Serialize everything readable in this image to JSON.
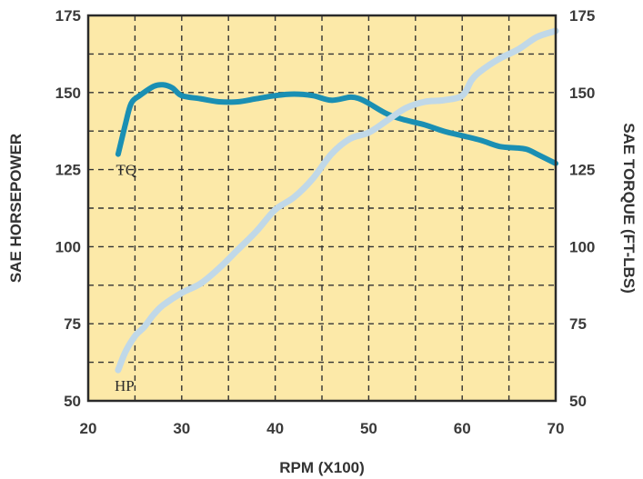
{
  "chart_data": {
    "type": "line",
    "title": "",
    "xlabel": "RPM (X100)",
    "ylabel_left": "SAE HORSEPOWER",
    "ylabel_right": "SAE TORQUE (FT-LBS)",
    "xlim": [
      20,
      70
    ],
    "ylim_left": [
      50,
      175
    ],
    "ylim_right": [
      50,
      175
    ],
    "x_ticks": [
      20,
      30,
      40,
      50,
      60,
      70
    ],
    "y_ticks_left": [
      50,
      75,
      100,
      125,
      150,
      175
    ],
    "y_ticks_right": [
      50,
      75,
      100,
      125,
      150,
      175
    ],
    "grid": true,
    "grid_style": "dashed",
    "legend": "none",
    "series": [
      {
        "name": "TQ",
        "axis": "right",
        "color": "#1a8fb3",
        "points": [
          [
            23.2,
            130
          ],
          [
            24,
            140
          ],
          [
            24.6,
            146.5
          ],
          [
            25.5,
            149
          ],
          [
            27,
            152
          ],
          [
            28,
            152.5
          ],
          [
            29,
            151.5
          ],
          [
            30,
            149
          ],
          [
            32,
            148
          ],
          [
            34,
            147
          ],
          [
            36,
            147
          ],
          [
            38,
            148
          ],
          [
            40,
            149
          ],
          [
            42,
            149.5
          ],
          [
            44,
            149
          ],
          [
            46,
            147.5
          ],
          [
            48,
            148.5
          ],
          [
            49,
            148
          ],
          [
            50,
            146.5
          ],
          [
            52,
            143
          ],
          [
            54,
            141
          ],
          [
            56,
            139.5
          ],
          [
            58,
            137.5
          ],
          [
            60,
            136
          ],
          [
            62,
            134.5
          ],
          [
            64,
            132.5
          ],
          [
            66,
            132
          ],
          [
            67,
            131.5
          ],
          [
            68,
            130
          ],
          [
            70,
            127
          ]
        ]
      },
      {
        "name": "HP",
        "axis": "left",
        "color": "#c0d8e8",
        "points": [
          [
            23.2,
            60
          ],
          [
            24,
            66
          ],
          [
            25,
            71
          ],
          [
            26,
            74
          ],
          [
            27,
            78
          ],
          [
            28,
            81
          ],
          [
            30,
            85
          ],
          [
            32,
            88
          ],
          [
            34,
            93
          ],
          [
            36,
            99
          ],
          [
            38,
            105
          ],
          [
            40,
            112
          ],
          [
            42,
            116
          ],
          [
            44,
            122
          ],
          [
            46,
            130
          ],
          [
            48,
            135
          ],
          [
            50,
            137
          ],
          [
            52,
            141
          ],
          [
            54,
            145
          ],
          [
            56,
            147
          ],
          [
            58,
            147.5
          ],
          [
            60,
            149
          ],
          [
            61,
            154
          ],
          [
            62,
            157
          ],
          [
            64,
            161
          ],
          [
            66,
            164
          ],
          [
            68,
            168
          ],
          [
            70,
            170
          ]
        ]
      }
    ],
    "annotations": [
      {
        "text": "TQ",
        "x": 23.2,
        "y": 125,
        "axis": "right"
      },
      {
        "text": "HP",
        "x": 23.0,
        "y": 55,
        "axis": "left"
      }
    ]
  },
  "colors": {
    "plot_background": "#fce9a8",
    "axis": "#2a2a2a",
    "grid": "#333333",
    "tq_line": "#1a8fb3",
    "hp_line": "#c0d8e8"
  }
}
